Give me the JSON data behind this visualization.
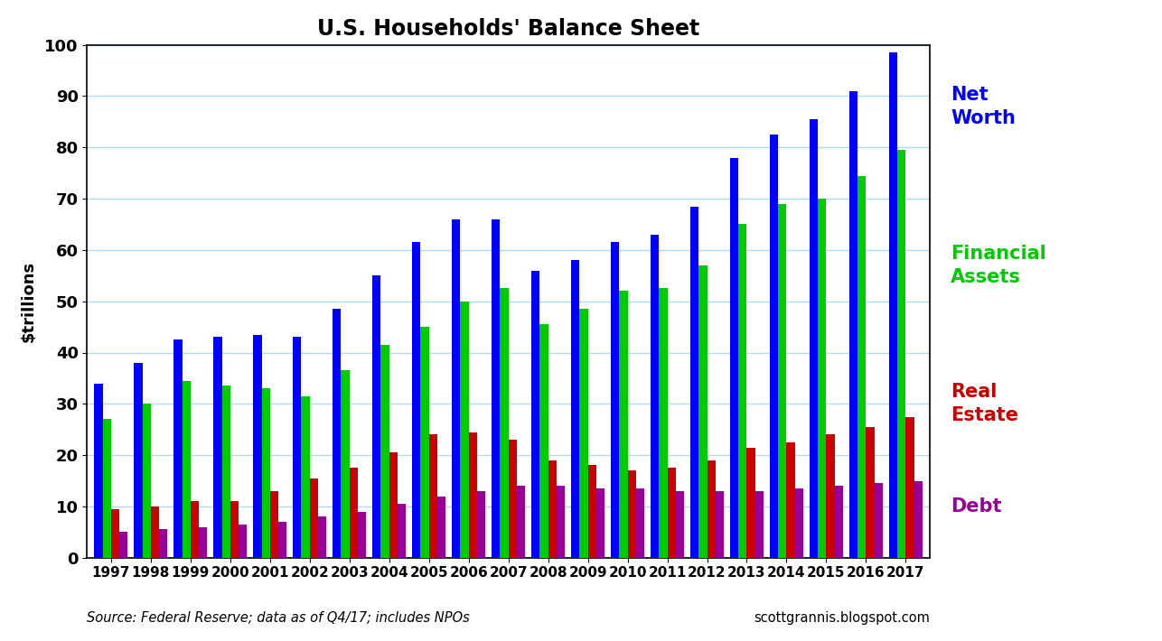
{
  "title": "U.S. Households' Balance Sheet",
  "ylabel": "$trillions",
  "years": [
    1997,
    1998,
    1999,
    2000,
    2001,
    2002,
    2003,
    2004,
    2005,
    2006,
    2007,
    2008,
    2009,
    2010,
    2011,
    2012,
    2013,
    2014,
    2015,
    2016,
    2017
  ],
  "net_worth": [
    34.0,
    38.0,
    42.5,
    43.0,
    43.5,
    43.0,
    48.5,
    55.0,
    61.5,
    66.0,
    66.0,
    56.0,
    58.0,
    61.5,
    63.0,
    68.5,
    78.0,
    82.5,
    85.5,
    91.0,
    98.5
  ],
  "financial_assets": [
    27.0,
    30.0,
    34.5,
    33.5,
    33.0,
    31.5,
    36.5,
    41.5,
    45.0,
    50.0,
    52.5,
    45.5,
    48.5,
    52.0,
    52.5,
    57.0,
    65.0,
    69.0,
    70.0,
    74.5,
    79.5
  ],
  "real_estate": [
    9.5,
    10.0,
    11.0,
    11.0,
    13.0,
    15.5,
    17.5,
    20.5,
    24.0,
    24.5,
    23.0,
    19.0,
    18.0,
    17.0,
    17.5,
    19.0,
    21.5,
    22.5,
    24.0,
    25.5,
    27.5
  ],
  "debt": [
    5.0,
    5.5,
    6.0,
    6.5,
    7.0,
    8.0,
    9.0,
    10.5,
    12.0,
    13.0,
    14.0,
    14.0,
    13.5,
    13.5,
    13.0,
    13.0,
    13.0,
    13.5,
    14.0,
    14.5,
    15.0
  ],
  "color_net_worth": "#0000ff",
  "color_financial": "#00cc00",
  "color_real_estate": "#cc0000",
  "color_debt": "#990099",
  "background_color": "#ffffff",
  "grid_color": "#aaddff",
  "source_text": "Source: Federal Reserve; data as of Q4/17; includes NPOs",
  "website_text": "scottgrannis.blogspot.com",
  "legend_net_worth": "Net\nWorth",
  "legend_financial": "Financial\nAssets",
  "legend_real_estate": "Real\nEstate",
  "legend_debt": "Debt",
  "ylim": [
    0,
    100
  ],
  "yticks": [
    0,
    10,
    20,
    30,
    40,
    50,
    60,
    70,
    80,
    90,
    100
  ]
}
